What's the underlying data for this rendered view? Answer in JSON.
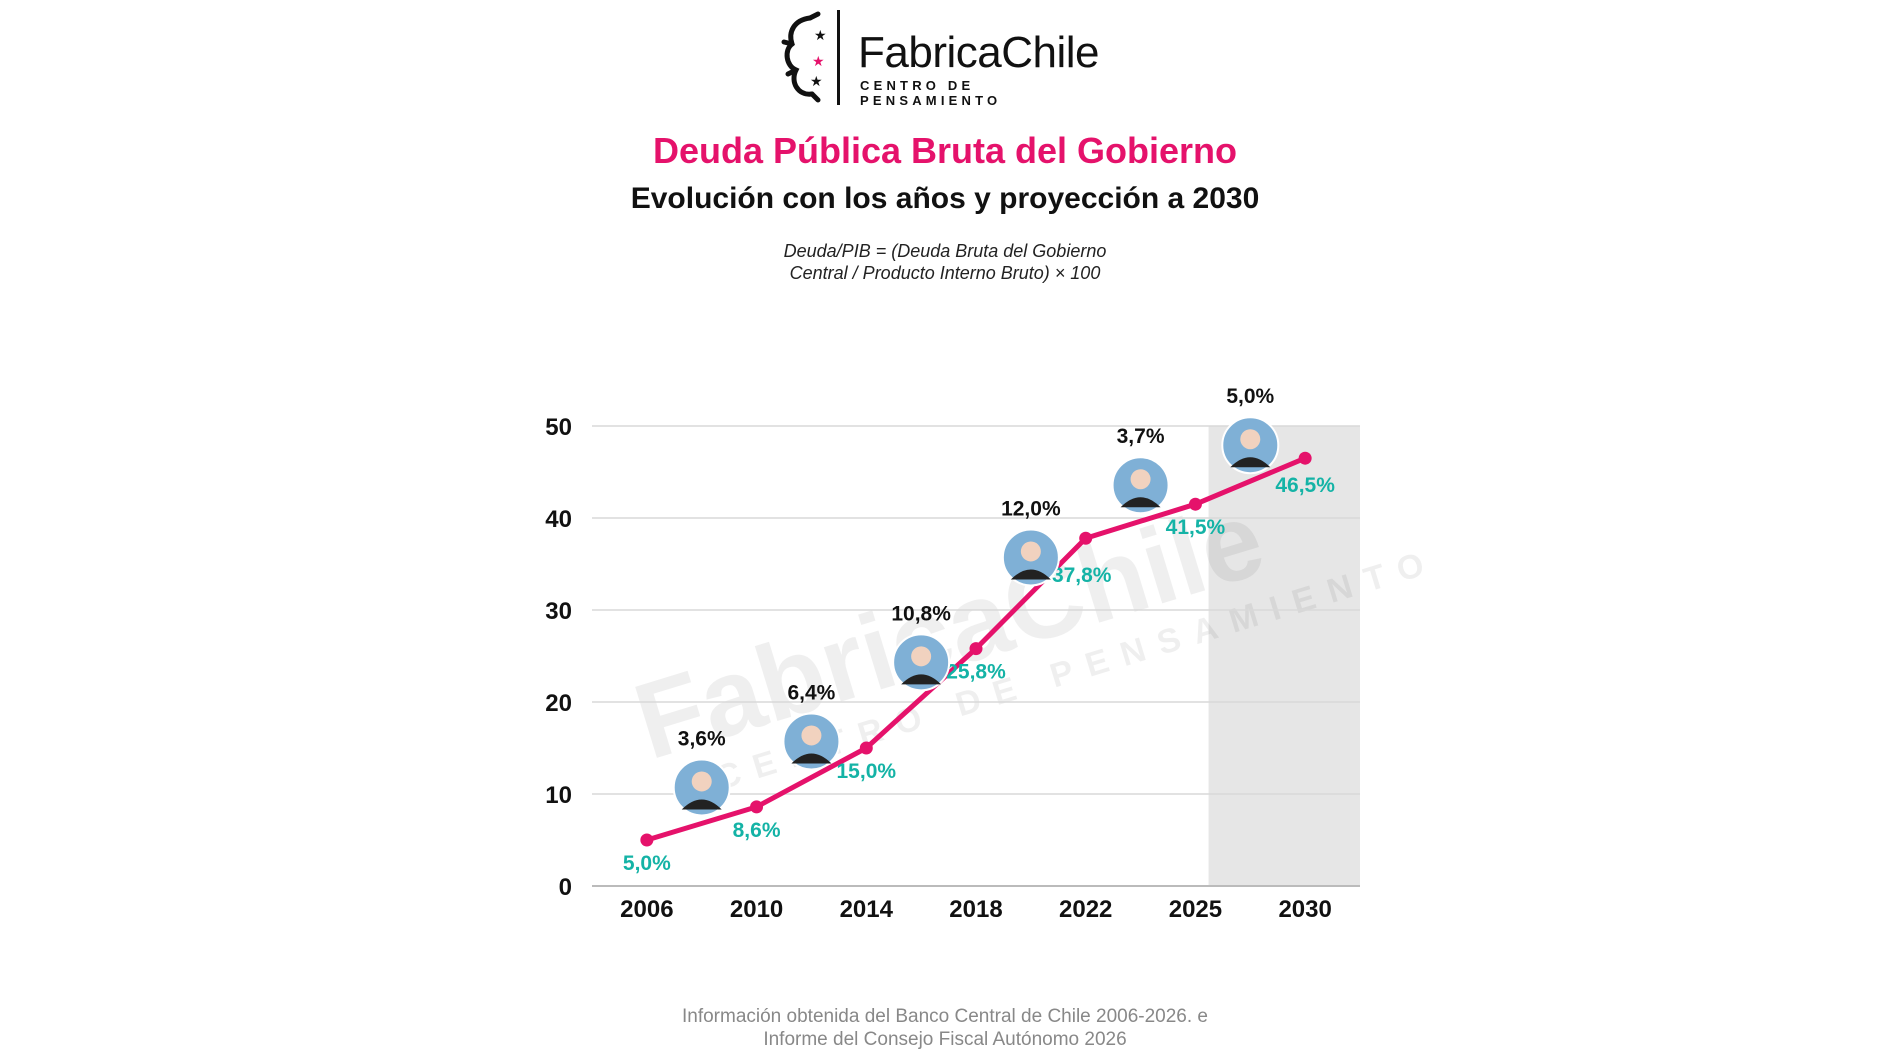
{
  "logo": {
    "name": "FabricaChile",
    "tagline": "CENTRO DE PENSAMIENTO"
  },
  "header": {
    "title": "Deuda Pública Bruta del Gobierno",
    "subtitle": "Evolución con los años y proyección a 2030",
    "formula_line1": "Deuda/PIB = (Deuda Bruta del Gobierno",
    "formula_line2": "Central / Producto Interno Bruto) × 100"
  },
  "footer": {
    "line1": "Información obtenida del Banco Central de Chile 2006-2026.  e",
    "line2": "Informe del Consejo Fiscal Autónomo 2026"
  },
  "colors": {
    "line": "#e5126b",
    "value_label": "#14b3a6",
    "projection_band": "#e6e6e6",
    "grid": "#d9d9d9"
  },
  "chart_data": {
    "type": "line",
    "x": [
      "2006",
      "2010",
      "2014",
      "2018",
      "2022",
      "2025",
      "2030"
    ],
    "values": [
      5.0,
      8.6,
      15.0,
      25.8,
      37.8,
      41.5,
      46.5
    ],
    "value_labels": [
      "5,0%",
      "8,6%",
      "15,0%",
      "25,8%",
      "37,8%",
      "41,5%",
      "46,5%"
    ],
    "period_annotations": [
      {
        "between": [
          "2006",
          "2010"
        ],
        "label": "3,6%"
      },
      {
        "between": [
          "2010",
          "2014"
        ],
        "label": "6,4%"
      },
      {
        "between": [
          "2014",
          "2018"
        ],
        "label": "10,8%"
      },
      {
        "between": [
          "2018",
          "2022"
        ],
        "label": "12,0%"
      },
      {
        "between": [
          "2022",
          "2025"
        ],
        "label": "3,7%"
      },
      {
        "between": [
          "2025",
          "2030"
        ],
        "label": "5,0%"
      }
    ],
    "ylim": [
      0,
      50
    ],
    "yticks": [
      "0",
      "10",
      "20",
      "30",
      "40",
      "50"
    ],
    "grid": true,
    "shaded_projection": [
      "2025",
      "2030"
    ],
    "watermark": {
      "name": "FabricaChile",
      "tagline": "CENTRO DE PENSAMIENTO"
    }
  }
}
